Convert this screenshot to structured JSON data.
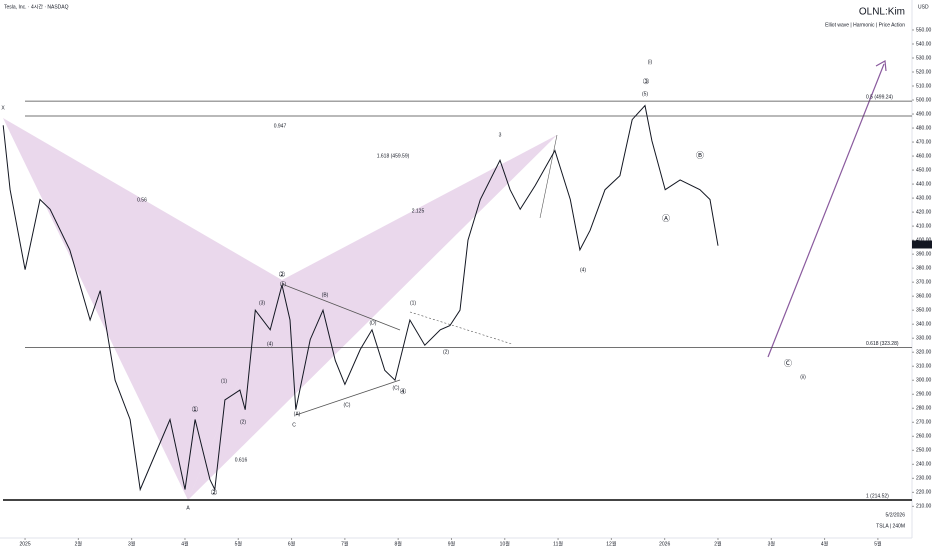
{
  "chart_data": {
    "type": "line",
    "title": "OLNL:Kim",
    "subtitle": "Elliot wave  |  Harmonic  |  Price Action",
    "symbol_info": "Tesla, Inc. · 4시간 · NASDAQ",
    "currency": "USD",
    "footer_date": "5/2/2026",
    "footer_symbol": "TSLA | 240M",
    "series": [
      {
        "name": "TSLA",
        "color": "#131722",
        "x": [
          -0.41,
          -0.28,
          0,
          0.28,
          0.47,
          0.84,
          1.22,
          1.41,
          1.69,
          1.97,
          2.16,
          2.44,
          2.72,
          3.0,
          3.19,
          3.47,
          3.56,
          3.75,
          4.03,
          4.13,
          4.32,
          4.6,
          4.82,
          4.97,
          5.08,
          5.35,
          5.59,
          5.82,
          6.0,
          6.29,
          6.51,
          6.75,
          6.94,
          7.22,
          7.5,
          7.79,
          7.97,
          8.16,
          8.31,
          8.54,
          8.91,
          9.1,
          9.29,
          9.57,
          9.94,
          10.23,
          10.41,
          10.6,
          10.88,
          11.16,
          11.39,
          11.63,
          11.76,
          12.01,
          12.29,
          12.66,
          12.85,
          13.0
        ],
        "values": [
          482,
          436,
          379,
          429,
          422,
          393,
          343,
          364,
          300,
          272,
          222,
          247,
          272,
          222,
          272,
          229,
          222,
          286,
          293,
          279,
          350,
          336,
          368,
          343,
          279,
          329,
          350,
          314,
          297,
          322,
          336,
          307,
          300,
          343,
          325,
          336,
          339,
          350,
          400,
          429,
          457,
          436,
          422,
          439,
          464,
          429,
          393,
          407,
          436,
          446,
          486,
          496,
          471,
          436,
          443,
          436,
          429,
          396
        ]
      }
    ],
    "last_price": {
      "value": 396.9,
      "label": "396.90"
    },
    "levels": [
      {
        "value": 499.24,
        "label": "0.5 (499.24)"
      },
      {
        "value": 488.6
      },
      {
        "value": 323.28,
        "label": "0.618 (323.28)"
      },
      {
        "value": 214.52,
        "label": "1 (214.52)"
      }
    ],
    "annotations": [
      "X",
      "A",
      "C",
      "0.56",
      "0.947",
      "2.125",
      "0.616",
      "1.618 (459.59)",
      "(i)",
      "(ii)",
      "③",
      "(5)",
      "Ⓐ",
      "Ⓑ",
      "Ⓒ",
      "(4)",
      "3",
      "①",
      "②",
      "(1)",
      "(2)",
      "(3)",
      "(4)",
      "(5)",
      "②",
      "(B)",
      "(A)",
      "(C)",
      "(D)",
      "(C)",
      "④",
      "(1)",
      "(2)"
    ],
    "xlim": [
      -0.47,
      16.64
    ],
    "xticks": [
      {
        "value": 0,
        "label": "2025"
      },
      {
        "value": 1,
        "label": "2월"
      },
      {
        "value": 2,
        "label": "3월"
      },
      {
        "value": 3,
        "label": "4월"
      },
      {
        "value": 4,
        "label": "5월"
      },
      {
        "value": 5,
        "label": "6월"
      },
      {
        "value": 6,
        "label": "7월"
      },
      {
        "value": 7,
        "label": "8월"
      },
      {
        "value": 8,
        "label": "9월"
      },
      {
        "value": 9,
        "label": "10월"
      },
      {
        "value": 10,
        "label": "11월"
      },
      {
        "value": 11,
        "label": "12월"
      },
      {
        "value": 12,
        "label": "2026"
      },
      {
        "value": 13,
        "label": "2월"
      },
      {
        "value": 14,
        "label": "3월"
      },
      {
        "value": 15,
        "label": "4월"
      },
      {
        "value": 16,
        "label": "5월"
      }
    ],
    "ylim": [
      187.4,
      571.4
    ],
    "yticks": [
      {
        "value": 550,
        "label": "550.00"
      },
      {
        "value": 540,
        "label": "540.00"
      },
      {
        "value": 530,
        "label": "530.00"
      },
      {
        "value": 520,
        "label": "520.00"
      },
      {
        "value": 510,
        "label": "510.00"
      },
      {
        "value": 500,
        "label": "500.00"
      },
      {
        "value": 490,
        "label": "490.00"
      },
      {
        "value": 480,
        "label": "480.00"
      },
      {
        "value": 470,
        "label": "470.00"
      },
      {
        "value": 460,
        "label": "460.00"
      },
      {
        "value": 450,
        "label": "450.00"
      },
      {
        "value": 440,
        "label": "440.00"
      },
      {
        "value": 430,
        "label": "430.00"
      },
      {
        "value": 420,
        "label": "420.00"
      },
      {
        "value": 410,
        "label": "410.00"
      },
      {
        "value": 400,
        "label": "400.00"
      },
      {
        "value": 390,
        "label": "390.00"
      },
      {
        "value": 380,
        "label": "380.00"
      },
      {
        "value": 370,
        "label": "370.00"
      },
      {
        "value": 360,
        "label": "360.00"
      },
      {
        "value": 350,
        "label": "350.00"
      },
      {
        "value": 340,
        "label": "340.00"
      },
      {
        "value": 330,
        "label": "330.00"
      },
      {
        "value": 320,
        "label": "320.00"
      },
      {
        "value": 310,
        "label": "310.00"
      },
      {
        "value": 300,
        "label": "300.00"
      },
      {
        "value": 290,
        "label": "290.00"
      },
      {
        "value": 280,
        "label": "280.00"
      },
      {
        "value": 270,
        "label": "270.00"
      },
      {
        "value": 260,
        "label": "260.00"
      },
      {
        "value": 250,
        "label": "250.00"
      },
      {
        "value": 240,
        "label": "240.00"
      },
      {
        "value": 230,
        "label": "230.00"
      },
      {
        "value": 220,
        "label": "220.00"
      },
      {
        "value": 210,
        "label": "210.00"
      }
    ],
    "grid": false
  }
}
